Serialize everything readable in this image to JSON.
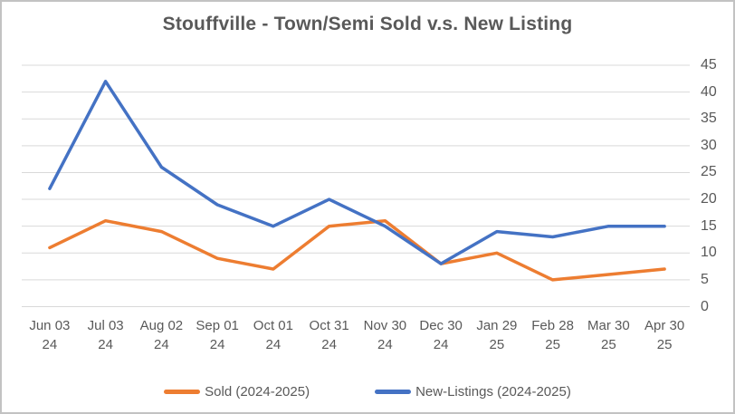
{
  "window": {
    "background": "#ffffff",
    "border_color": "#c2c2c2"
  },
  "styles": {
    "title_color": "#595959",
    "axis_label_color": "#595959",
    "gridline_color": "#d9d9d9",
    "sold_color": "#ED7D31",
    "new_listings_color": "#4472C4"
  },
  "chart_data": {
    "type": "line",
    "title": "Stouffville - Town/Semi Sold v.s. New Listing",
    "categories": [
      {
        "line1": "Jun 03",
        "line2": "24"
      },
      {
        "line1": "Jul 03",
        "line2": "24"
      },
      {
        "line1": "Aug 02",
        "line2": "24"
      },
      {
        "line1": "Sep 01",
        "line2": "24"
      },
      {
        "line1": "Oct 01",
        "line2": "24"
      },
      {
        "line1": "Oct 31",
        "line2": "24"
      },
      {
        "line1": "Nov 30",
        "line2": "24"
      },
      {
        "line1": "Dec 30",
        "line2": "24"
      },
      {
        "line1": "Jan 29",
        "line2": "25"
      },
      {
        "line1": "Feb 28",
        "line2": "25"
      },
      {
        "line1": "Mar 30",
        "line2": "25"
      },
      {
        "line1": "Apr 30",
        "line2": "25"
      }
    ],
    "series": [
      {
        "name": "Sold (2024-2025)",
        "color": "#ED7D31",
        "values": [
          11,
          16,
          14,
          9,
          7,
          15,
          16,
          8,
          10,
          5,
          6,
          7
        ]
      },
      {
        "name": "New-Listings (2024-2025)",
        "color": "#4472C4",
        "values": [
          22,
          42,
          26,
          19,
          15,
          20,
          15,
          8,
          14,
          13,
          15,
          15
        ]
      }
    ],
    "y_axis": {
      "min": 0,
      "max": 45,
      "step": 5,
      "side": "right",
      "tick_labels": [
        "0",
        "5",
        "10",
        "15",
        "20",
        "25",
        "30",
        "35",
        "40",
        "45"
      ]
    },
    "x_axis": {
      "label": ""
    },
    "grid": true,
    "legend_position": "bottom"
  }
}
